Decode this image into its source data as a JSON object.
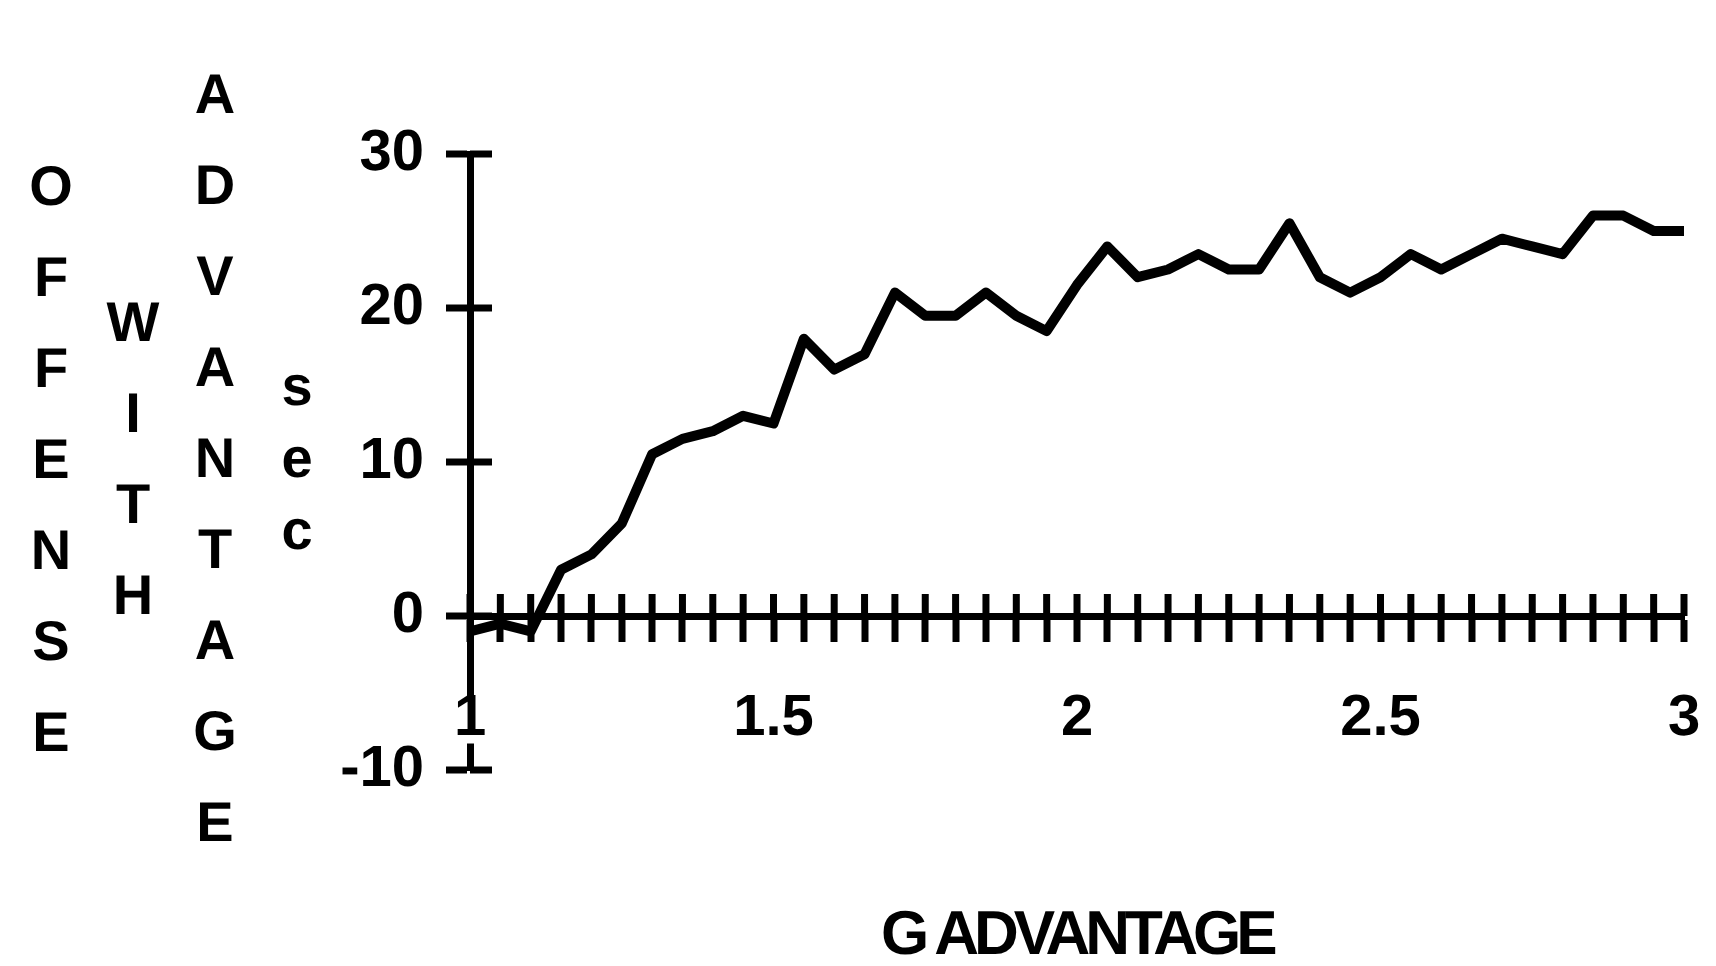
{
  "chart_data": {
    "type": "line",
    "xlabel": "G ADVANTAGE",
    "ylabel": "OFFENSE WITH ADVANTAGE sec",
    "x": [
      1,
      1.05,
      1.1,
      1.15,
      1.2,
      1.25,
      1.3,
      1.35,
      1.4,
      1.45,
      1.5,
      1.55,
      1.6,
      1.65,
      1.7,
      1.75,
      1.8,
      1.85,
      1.9,
      1.95,
      2,
      2.05,
      2.1,
      2.15,
      2.2,
      2.25,
      2.3,
      2.35,
      2.4,
      2.45,
      2.5,
      2.55,
      2.6,
      2.65,
      2.7,
      2.75,
      2.8,
      2.85,
      2.9,
      2.95,
      3
    ],
    "values": [
      -1,
      -0.5,
      -1,
      3,
      4,
      6,
      10.5,
      11.5,
      12,
      13,
      12.5,
      18,
      16,
      17,
      21,
      19.5,
      19.5,
      21,
      19.5,
      18.5,
      21.5,
      24,
      22,
      22.5,
      23.5,
      22.5,
      22.5,
      25.5,
      22,
      21,
      22,
      23.5,
      22.5,
      23.5,
      24.5,
      24,
      23.5,
      26,
      26,
      25,
      25
    ],
    "color": "#000000",
    "xlim": [
      1,
      3
    ],
    "ylim": [
      -10,
      30
    ],
    "xticks": [
      1,
      {
        "value": 1.05,
        "label": null
      },
      {
        "value": 1.1,
        "label": null
      },
      {
        "value": 1.15,
        "label": null
      },
      {
        "value": 1.2,
        "label": null
      },
      {
        "value": 1.25,
        "label": null
      },
      {
        "value": 1.3,
        "label": null
      },
      {
        "value": 1.35,
        "label": null
      },
      {
        "value": 1.4,
        "label": null
      },
      {
        "value": 1.45,
        "label": null
      },
      1.5,
      {
        "value": 1.55,
        "label": null
      },
      {
        "value": 1.6,
        "label": null
      },
      {
        "value": 1.65,
        "label": null
      },
      {
        "value": 1.7,
        "label": null
      },
      {
        "value": 1.75,
        "label": null
      },
      {
        "value": 1.8,
        "label": null
      },
      {
        "value": 1.85,
        "label": null
      },
      {
        "value": 1.9,
        "label": null
      },
      {
        "value": 1.95,
        "label": null
      },
      2,
      {
        "value": 2.05,
        "label": null
      },
      {
        "value": 2.1,
        "label": null
      },
      {
        "value": 2.15,
        "label": null
      },
      {
        "value": 2.2,
        "label": null
      },
      {
        "value": 2.25,
        "label": null
      },
      {
        "value": 2.3,
        "label": null
      },
      {
        "value": 2.35,
        "label": null
      },
      {
        "value": 2.4,
        "label": null
      },
      {
        "value": 2.45,
        "label": null
      },
      2.5,
      {
        "value": 2.55,
        "label": null
      },
      {
        "value": 2.6,
        "label": null
      },
      {
        "value": 2.65,
        "label": null
      },
      {
        "value": 2.7,
        "label": null
      },
      {
        "value": 2.75,
        "label": null
      },
      {
        "value": 2.8,
        "label": null
      },
      {
        "value": 2.85,
        "label": null
      },
      {
        "value": 2.9,
        "label": null
      },
      {
        "value": 2.95,
        "label": null
      },
      3
    ],
    "yticks": [
      -10,
      0,
      10,
      20,
      30
    ]
  }
}
